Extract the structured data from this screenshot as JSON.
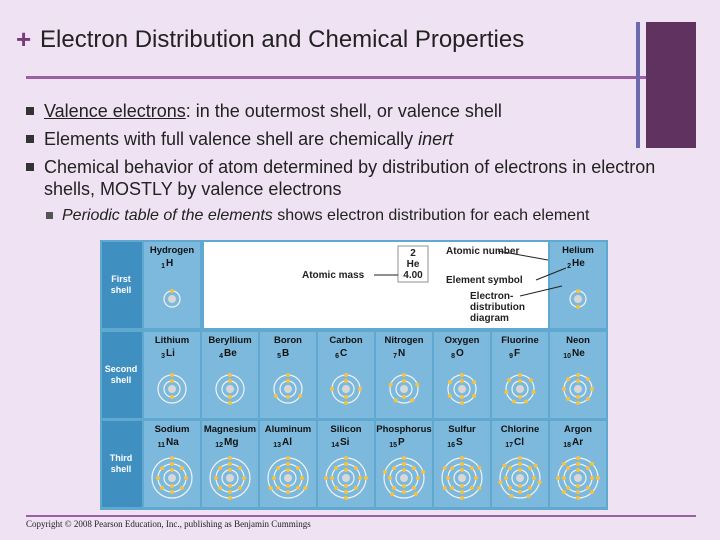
{
  "slide": {
    "title_mark": "+",
    "title": "Electron Distribution and Chemical Properties"
  },
  "bullets": {
    "b1_term": "Valence electrons",
    "b1_rest_a": ": in the outermost shell, or ",
    "b1_rest_b": "valence shell",
    "b2_text": "Elements with full valence shell are chemically ",
    "b2_em": "inert",
    "b3_text": "Chemical behavior of atom determined by distribution of electrons in electron shells, MOSTLY by valence electrons",
    "sub_em": "Periodic table of the elements",
    "sub_rest": " shows electron distribution for each element"
  },
  "figure": {
    "key": {
      "atomic_number_label": "Atomic number",
      "atomic_mass_label": "Atomic mass",
      "element_symbol_label": "Element symbol",
      "diagram_label_1": "Electron-",
      "diagram_label_2": "distribution",
      "diagram_label_3": "diagram",
      "sample_number": "2",
      "sample_symbol": "He",
      "sample_mass": "4.00"
    },
    "rows": [
      {
        "label_1": "First",
        "label_2": "shell"
      },
      {
        "label_1": "Second",
        "label_2": "shell"
      },
      {
        "label_1": "Third",
        "label_2": "shell"
      }
    ],
    "elements": [
      {
        "name": "Hydrogen",
        "number": "1",
        "symbol": "H",
        "row": 0,
        "col": 0,
        "electrons": 1
      },
      {
        "name": "Helium",
        "number": "2",
        "symbol": "He",
        "row": 0,
        "col": 7,
        "electrons": 2
      },
      {
        "name": "Lithium",
        "number": "3",
        "symbol": "Li",
        "row": 1,
        "col": 0,
        "electrons": 3
      },
      {
        "name": "Beryllium",
        "number": "4",
        "symbol": "Be",
        "row": 1,
        "col": 1,
        "electrons": 4
      },
      {
        "name": "Boron",
        "number": "5",
        "symbol": "B",
        "row": 1,
        "col": 2,
        "electrons": 5
      },
      {
        "name": "Carbon",
        "number": "6",
        "symbol": "C",
        "row": 1,
        "col": 3,
        "electrons": 6
      },
      {
        "name": "Nitrogen",
        "number": "7",
        "symbol": "N",
        "row": 1,
        "col": 4,
        "electrons": 7
      },
      {
        "name": "Oxygen",
        "number": "8",
        "symbol": "O",
        "row": 1,
        "col": 5,
        "electrons": 8
      },
      {
        "name": "Fluorine",
        "number": "9",
        "symbol": "F",
        "row": 1,
        "col": 6,
        "electrons": 9
      },
      {
        "name": "Neon",
        "number": "10",
        "symbol": "Ne",
        "row": 1,
        "col": 7,
        "electrons": 10
      },
      {
        "name": "Sodium",
        "number": "11",
        "symbol": "Na",
        "row": 2,
        "col": 0,
        "electrons": 11
      },
      {
        "name": "Magnesium",
        "number": "12",
        "symbol": "Mg",
        "row": 2,
        "col": 1,
        "electrons": 12
      },
      {
        "name": "Aluminum",
        "number": "13",
        "symbol": "Al",
        "row": 2,
        "col": 2,
        "electrons": 13
      },
      {
        "name": "Silicon",
        "number": "14",
        "symbol": "Si",
        "row": 2,
        "col": 3,
        "electrons": 14
      },
      {
        "name": "Phosphorus",
        "number": "15",
        "symbol": "P",
        "row": 2,
        "col": 4,
        "electrons": 15
      },
      {
        "name": "Sulfur",
        "number": "16",
        "symbol": "S",
        "row": 2,
        "col": 5,
        "electrons": 16
      },
      {
        "name": "Chlorine",
        "number": "17",
        "symbol": "Cl",
        "row": 2,
        "col": 6,
        "electrons": 17
      },
      {
        "name": "Argon",
        "number": "18",
        "symbol": "Ar",
        "row": 2,
        "col": 7,
        "electrons": 18
      }
    ],
    "colors": {
      "panel": "#5fa8cf",
      "row_label_bg": "#3f8fc0",
      "cell": "#7cb9dc",
      "shell_ring": "#f2f2f2",
      "nucleus": "#d8d8d8",
      "electron": "#f5c242",
      "key_bg": "#ffffff"
    }
  },
  "footer": {
    "copyright": "Copyright © 2008 Pearson Education, Inc., publishing as Benjamin Cummings"
  }
}
